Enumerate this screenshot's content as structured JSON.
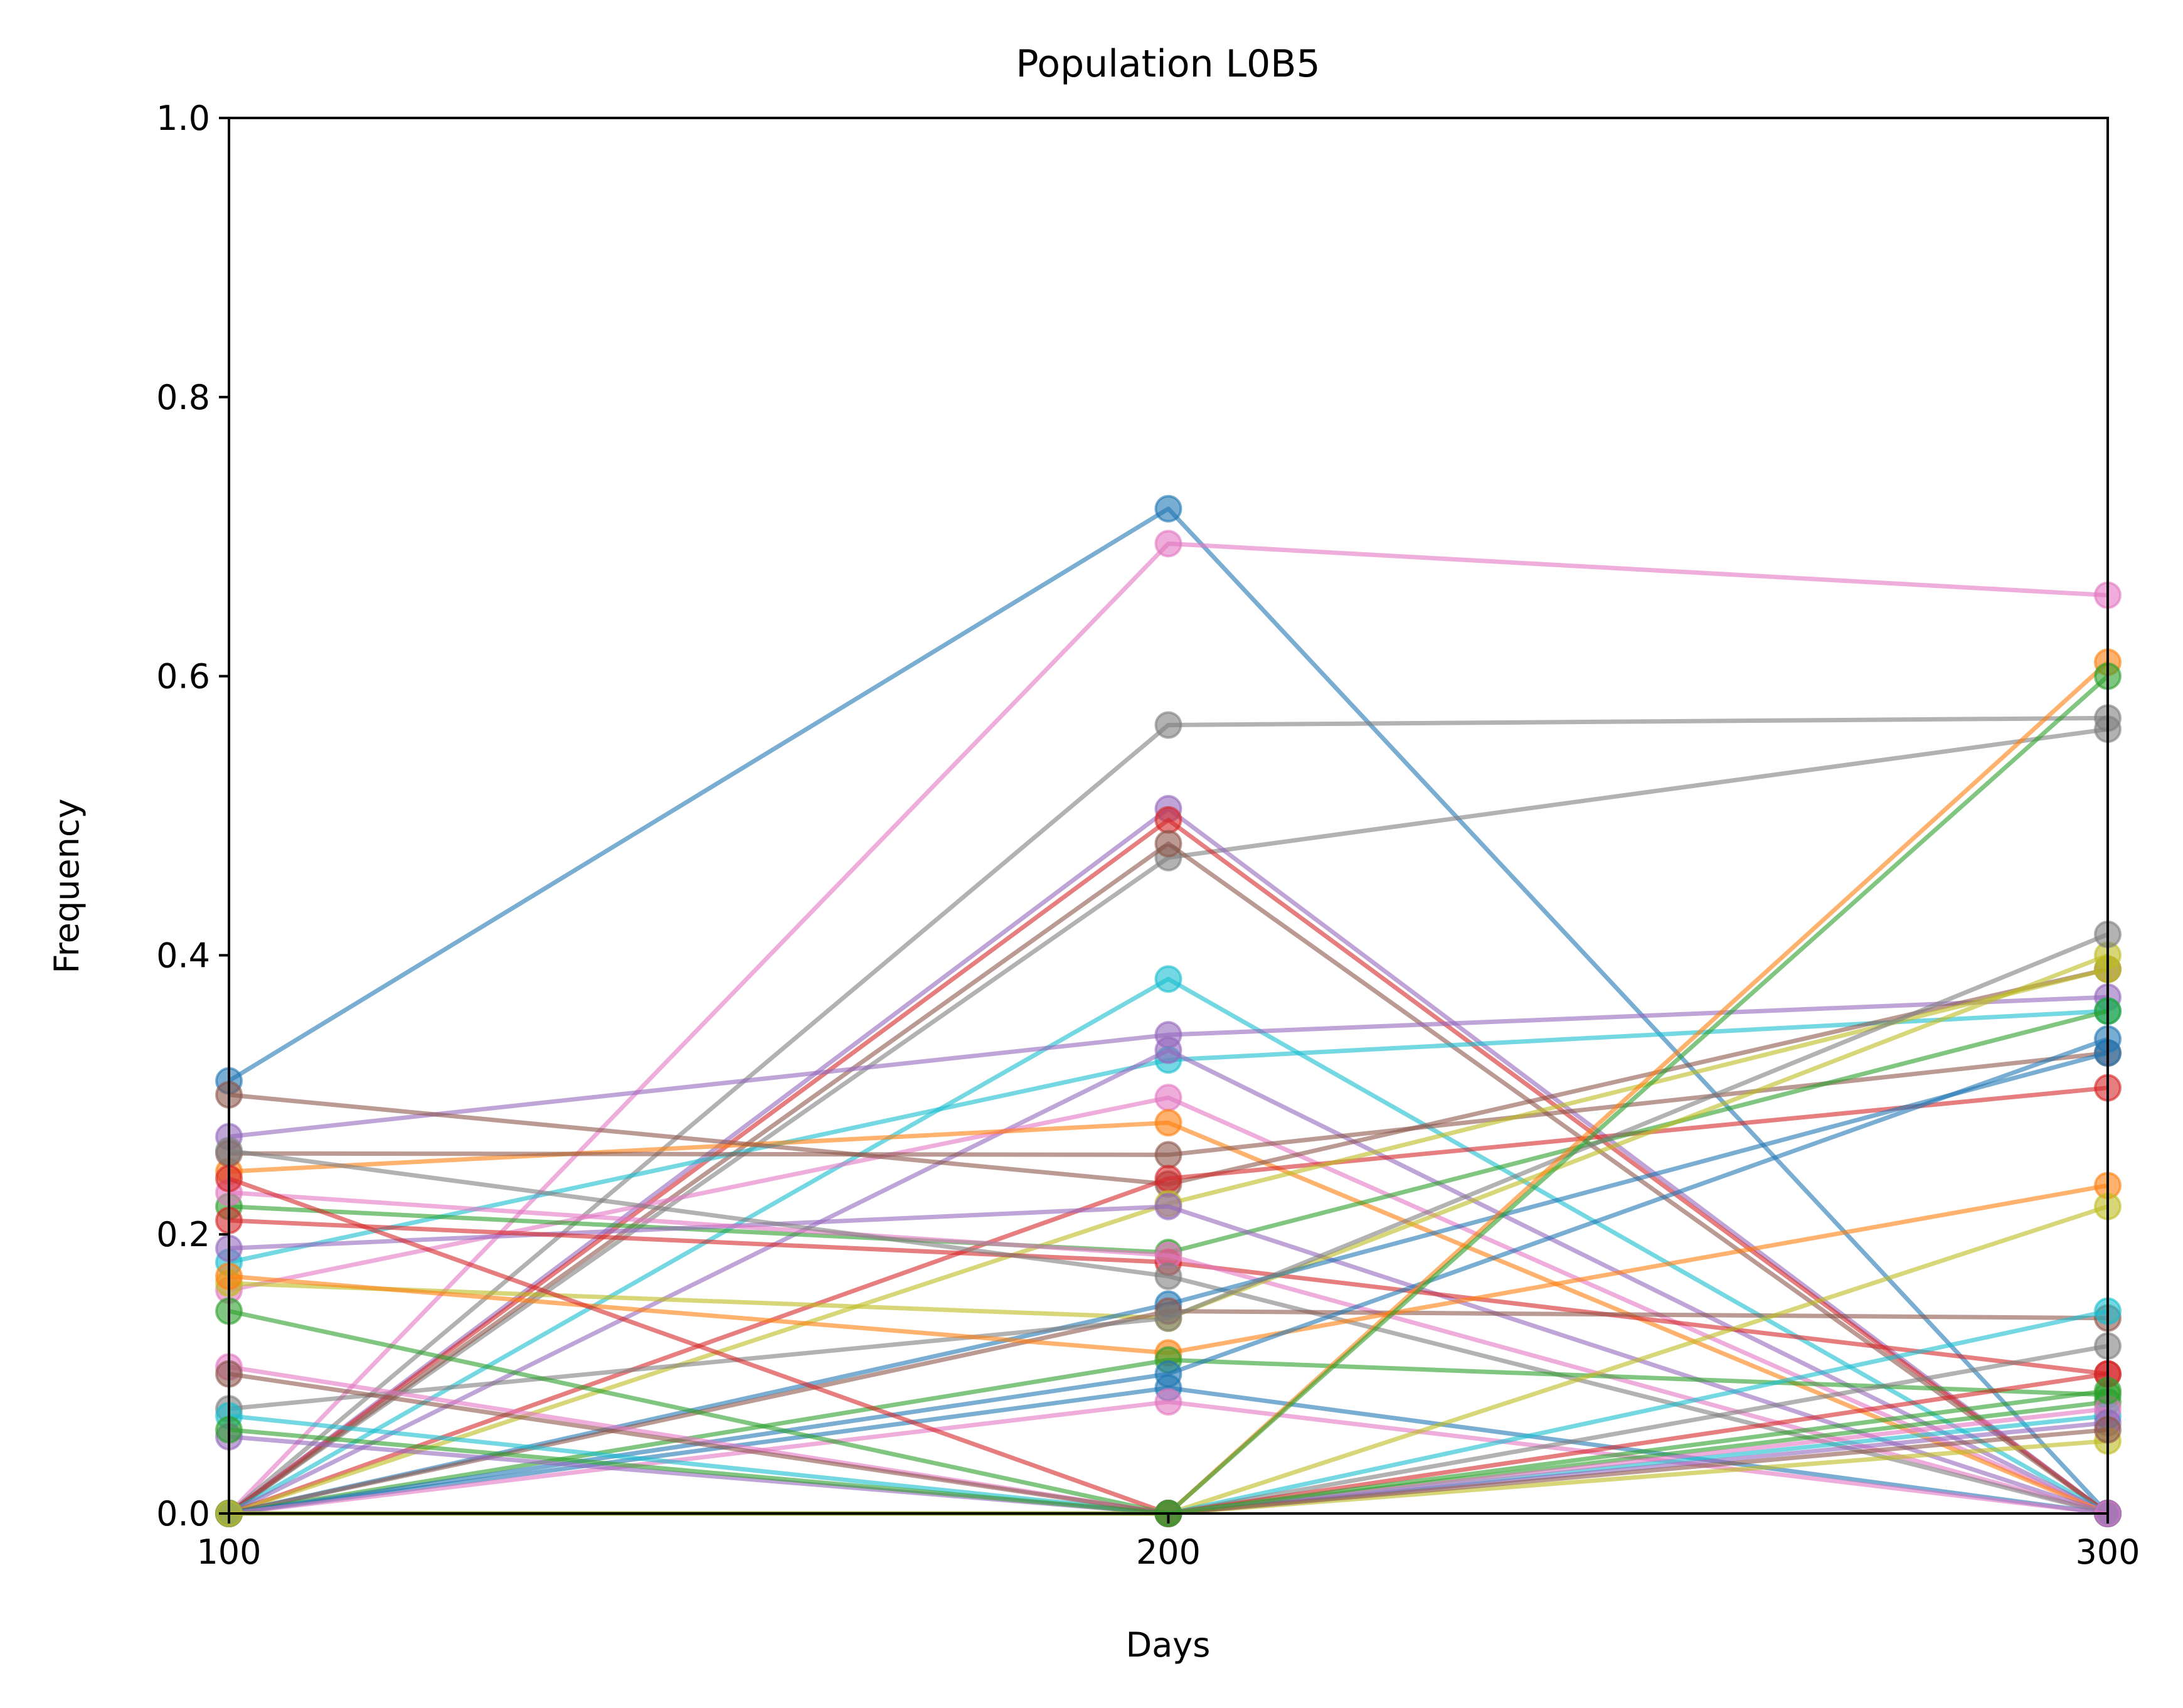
{
  "chart_data": {
    "type": "line",
    "title": "Population L0B5",
    "xlabel": "Days",
    "ylabel": "Frequency",
    "xlim": [
      100,
      300
    ],
    "ylim": [
      0.0,
      1.0
    ],
    "xticks": [
      "100",
      "200",
      "300"
    ],
    "yticks": [
      "0.0",
      "0.2",
      "0.4",
      "0.6",
      "0.8",
      "1.0"
    ],
    "grid": false,
    "legend": "none",
    "marker": "circle",
    "x": [
      100,
      200,
      300
    ],
    "series": [
      {
        "color": "#1f77b4",
        "values": [
          0.31,
          0.72,
          0.0
        ]
      },
      {
        "color": "#e377c2",
        "values": [
          0.0,
          0.695,
          0.658
        ]
      },
      {
        "color": "#7f7f7f",
        "values": [
          0.0,
          0.565,
          0.57
        ]
      },
      {
        "color": "#7f7f7f",
        "values": [
          0.0,
          0.47,
          0.562
        ]
      },
      {
        "color": "#9467bd",
        "values": [
          0.0,
          0.505,
          0.0
        ]
      },
      {
        "color": "#d62728",
        "values": [
          0.0,
          0.497,
          0.0
        ]
      },
      {
        "color": "#8c564b",
        "values": [
          0.0,
          0.48,
          0.0
        ]
      },
      {
        "color": "#17becf",
        "values": [
          0.0,
          0.383,
          0.0
        ]
      },
      {
        "color": "#9467bd",
        "values": [
          0.27,
          0.343,
          0.37
        ]
      },
      {
        "color": "#17becf",
        "values": [
          0.18,
          0.325,
          0.36
        ]
      },
      {
        "color": "#9467bd",
        "values": [
          0.0,
          0.332,
          0.0
        ]
      },
      {
        "color": "#e377c2",
        "values": [
          0.16,
          0.298,
          0.0
        ]
      },
      {
        "color": "#ff7f0e",
        "values": [
          0.245,
          0.28,
          0.0
        ]
      },
      {
        "color": "#8c564b",
        "values": [
          0.258,
          0.257,
          0.33
        ]
      },
      {
        "color": "#8c564b",
        "values": [
          0.3,
          0.236,
          0.39
        ]
      },
      {
        "color": "#d62728",
        "values": [
          0.0,
          0.24,
          0.305
        ]
      },
      {
        "color": "#bcbd22",
        "values": [
          0.0,
          0.222,
          0.39
        ]
      },
      {
        "color": "#2ca02c",
        "values": [
          0.22,
          0.187,
          0.36
        ]
      },
      {
        "color": "#9467bd",
        "values": [
          0.19,
          0.22,
          0.0
        ]
      },
      {
        "color": "#d62728",
        "values": [
          0.21,
          0.18,
          0.1
        ]
      },
      {
        "color": "#e377c2",
        "values": [
          0.23,
          0.185,
          0.0
        ]
      },
      {
        "color": "#7f7f7f",
        "values": [
          0.26,
          0.17,
          0.0
        ]
      },
      {
        "color": "#bcbd22",
        "values": [
          0.165,
          0.14,
          0.4
        ]
      },
      {
        "color": "#1f77b4",
        "values": [
          0.0,
          0.15,
          0.33
        ]
      },
      {
        "color": "#8c564b",
        "values": [
          0.0,
          0.145,
          0.14
        ]
      },
      {
        "color": "#7f7f7f",
        "values": [
          0.075,
          0.14,
          0.415
        ]
      },
      {
        "color": "#ff7f0e",
        "values": [
          0.17,
          0.115,
          0.235
        ]
      },
      {
        "color": "#2ca02c",
        "values": [
          0.0,
          0.11,
          0.085
        ]
      },
      {
        "color": "#1f77b4",
        "values": [
          0.0,
          0.1,
          0.34
        ]
      },
      {
        "color": "#1f77b4",
        "values": [
          0.0,
          0.09,
          0.0
        ]
      },
      {
        "color": "#e377c2",
        "values": [
          0.0,
          0.08,
          0.0
        ]
      },
      {
        "color": "#ff7f0e",
        "values": [
          0.0,
          0.0,
          0.61
        ]
      },
      {
        "color": "#2ca02c",
        "values": [
          0.0,
          0.0,
          0.6
        ]
      },
      {
        "color": "#bcbd22",
        "values": [
          0.0,
          0.0,
          0.22
        ]
      },
      {
        "color": "#17becf",
        "values": [
          0.0,
          0.0,
          0.145
        ]
      },
      {
        "color": "#7f7f7f",
        "values": [
          0.0,
          0.0,
          0.12
        ]
      },
      {
        "color": "#d62728",
        "values": [
          0.24,
          0.0,
          0.1
        ]
      },
      {
        "color": "#2ca02c",
        "values": [
          0.145,
          0.0,
          0.08
        ]
      },
      {
        "color": "#17becf",
        "values": [
          0.07,
          0.0,
          0.07
        ]
      },
      {
        "color": "#e377c2",
        "values": [
          0.105,
          0.0,
          0.075
        ]
      },
      {
        "color": "#9467bd",
        "values": [
          0.055,
          0.0,
          0.065
        ]
      },
      {
        "color": "#bcbd22",
        "values": [
          0.0,
          0.0,
          0.052
        ]
      },
      {
        "color": "#8c564b",
        "values": [
          0.1,
          0.0,
          0.06
        ]
      },
      {
        "color": "#2ca02c",
        "values": [
          0.06,
          0.0,
          0.088
        ]
      }
    ]
  }
}
